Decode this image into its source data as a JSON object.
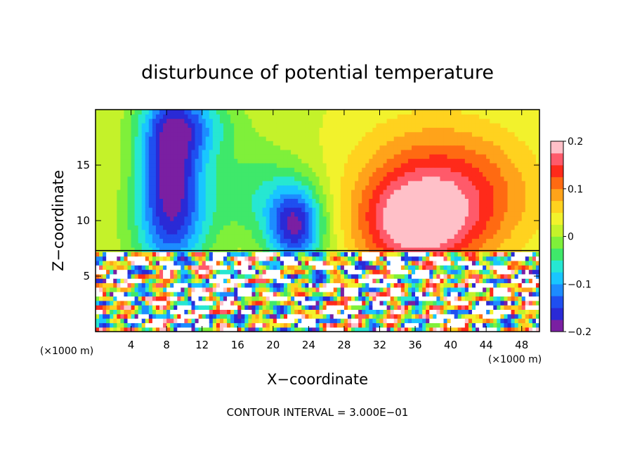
{
  "chart_data": {
    "type": "heatmap",
    "title": "disturbunce of potential temperature",
    "xlabel": "X−coordinate",
    "ylabel": "Z−coordinate",
    "x_unit_label_left": "(×1000 m)",
    "x_unit_label_right": "(×1000 m)",
    "footer": "CONTOUR INTERVAL = 3.000E−01",
    "xlim": [
      0,
      50
    ],
    "ylim": [
      0,
      20
    ],
    "x_ticks": [
      4,
      8,
      12,
      16,
      20,
      24,
      28,
      32,
      36,
      40,
      44,
      48
    ],
    "y_ticks": [
      5,
      10,
      15
    ],
    "colorbar": {
      "range": [
        -0.2,
        0.2
      ],
      "tick_values": [
        0.2,
        0.1,
        0,
        -0.1,
        -0.2
      ],
      "tick_labels": [
        "0.2",
        "0.1",
        "0",
        "−0.1",
        "−0.2"
      ],
      "colors": [
        "#7a1fa2",
        "#2a2ad6",
        "#1f4ff0",
        "#1d8cff",
        "#19c6ff",
        "#26e7d2",
        "#3fe86a",
        "#7ff03a",
        "#c4f22a",
        "#f2f22c",
        "#ffd21f",
        "#ffa31a",
        "#ff6a12",
        "#ff2a1a",
        "#ff5a6a",
        "#ffc0c8"
      ]
    },
    "field_features": {
      "boundary_z": 7.3,
      "upper_background": 0.02,
      "anomalies": [
        {
          "x": 8.5,
          "z": 14.5,
          "value": -0.2,
          "sx": 2.6,
          "sz": 5.5
        },
        {
          "x": 8.5,
          "z": 9.0,
          "value": -0.05,
          "sx": 3.5,
          "sz": 3.0
        },
        {
          "x": 22.5,
          "z": 9.5,
          "value": -0.19,
          "sx": 2.2,
          "sz": 2.5
        },
        {
          "x": 18.0,
          "z": 12.5,
          "value": -0.06,
          "sx": 4.0,
          "sz": 3.0
        },
        {
          "x": 11.0,
          "z": 18.5,
          "value": -0.08,
          "sx": 3.5,
          "sz": 2.0
        },
        {
          "x": 36.0,
          "z": 9.5,
          "value": 0.16,
          "sx": 4.5,
          "sz": 3.0
        },
        {
          "x": 37.0,
          "z": 14.0,
          "value": 0.08,
          "sx": 6.0,
          "sz": 4.0
        },
        {
          "x": 44.0,
          "z": 12.0,
          "value": 0.06,
          "sx": 5.0,
          "sz": 4.0
        }
      ]
    }
  }
}
